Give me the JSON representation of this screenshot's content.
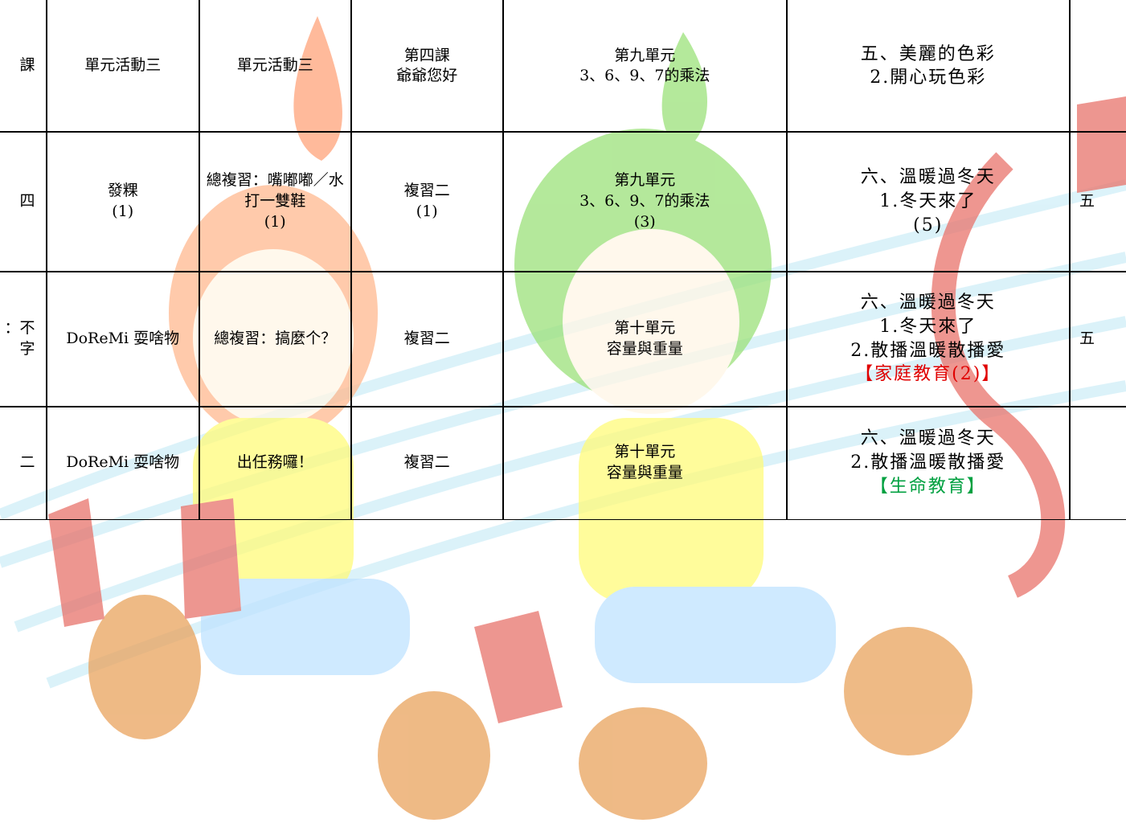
{
  "table": {
    "rows": [
      [
        [
          "課"
        ],
        [
          "單元活動三"
        ],
        [
          "單元活動三"
        ],
        [
          "第四課",
          "爺爺您好"
        ],
        [
          "第九單元",
          "3、6、9、7的乘法"
        ],
        [
          "五、美麗的色彩",
          "2.開心玩色彩"
        ],
        []
      ],
      [
        [
          "四"
        ],
        [
          "發粿",
          "(1)"
        ],
        [
          "總複習：嘴嘟嘟／水打一雙鞋",
          "(1)"
        ],
        [
          "複習二",
          "(1)"
        ],
        [
          "第九單元",
          "3、6、9、7的乘法",
          "(3)"
        ],
        [
          "六、溫暖過冬天",
          "1.冬天來了",
          "(5)"
        ],
        [
          "五"
        ]
      ],
      [
        [
          "：不",
          "字"
        ],
        [
          "DoReMi 耍啥物"
        ],
        [
          "總複習：搞麼个？"
        ],
        [
          "複習二"
        ],
        [
          "第十單元",
          "容量與重量"
        ],
        [
          "六、溫暖過冬天",
          "1.冬天來了",
          "2.散播溫暖散播愛",
          {
            "text": "【家庭教育(2)】",
            "color": "#e00000"
          }
        ],
        [
          "五"
        ]
      ],
      [
        [
          "二"
        ],
        [
          "DoReMi 耍啥物"
        ],
        [
          "出任務囉！"
        ],
        [
          "複習二"
        ],
        [
          "第十單元",
          "容量與重量"
        ],
        [
          "六、溫暖過冬天",
          "2.散播溫暖散播愛",
          {
            "text": "【生命教育】",
            "color": "#00a040"
          }
        ],
        []
      ]
    ]
  }
}
